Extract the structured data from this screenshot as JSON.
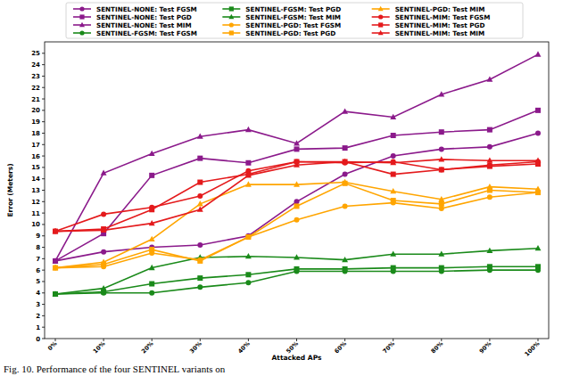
{
  "chart_data": {
    "type": "line",
    "title": "Fig. 10. Performance of the four SENTINEL variants on",
    "x_label": "Attacked APs",
    "y_label": "Error (Meters)",
    "categories": [
      "0%",
      "10%",
      "20%",
      "30%",
      "40%",
      "50%",
      "60%",
      "70%",
      "80%",
      "90%",
      "100%"
    ],
    "ylim": [
      0,
      26
    ],
    "yticks": [
      0,
      1,
      2,
      3,
      4,
      5,
      6,
      7,
      8,
      9,
      10,
      11,
      12,
      13,
      14,
      15,
      16,
      17,
      18,
      19,
      20,
      21,
      22,
      23,
      24,
      25
    ],
    "grid": false,
    "legend": "top",
    "series": [
      {
        "name": "SENTINEL-NONE: Test FGSM",
        "color": "#8b1a8b",
        "marker": "circle",
        "values": [
          6.8,
          7.6,
          8.0,
          8.2,
          9.0,
          12.0,
          14.4,
          16.0,
          16.6,
          16.8,
          18.0
        ]
      },
      {
        "name": "SENTINEL-NONE: Test PGD",
        "color": "#8b1a8b",
        "marker": "square",
        "values": [
          6.8,
          9.2,
          14.3,
          15.8,
          15.4,
          16.6,
          16.7,
          17.8,
          18.1,
          18.3,
          20.0
        ]
      },
      {
        "name": "SENTINEL-NONE: Test MIM",
        "color": "#8b1a8b",
        "marker": "triangle",
        "values": [
          6.8,
          14.5,
          16.2,
          17.7,
          18.3,
          17.1,
          19.9,
          19.4,
          21.4,
          22.7,
          24.9
        ]
      },
      {
        "name": "SENTINEL-FGSM: Test FGSM",
        "color": "#1a8a1a",
        "marker": "circle",
        "values": [
          3.9,
          4.0,
          4.0,
          4.5,
          4.9,
          5.9,
          5.9,
          5.9,
          5.9,
          6.0,
          6.0
        ]
      },
      {
        "name": "SENTINEL-FGSM: Test PGD",
        "color": "#1a8a1a",
        "marker": "square",
        "values": [
          3.9,
          4.1,
          4.8,
          5.3,
          5.6,
          6.1,
          6.1,
          6.2,
          6.2,
          6.3,
          6.3
        ]
      },
      {
        "name": "SENTINEL-FGSM: Test MIM",
        "color": "#1a8a1a",
        "marker": "triangle",
        "values": [
          3.9,
          4.4,
          6.2,
          7.1,
          7.2,
          7.1,
          6.9,
          7.4,
          7.4,
          7.7,
          7.9
        ]
      },
      {
        "name": "SENTINEL-PGD: Test FGSM",
        "color": "#ffa500",
        "marker": "circle",
        "values": [
          6.2,
          6.3,
          7.5,
          6.9,
          8.9,
          10.4,
          11.6,
          11.9,
          11.4,
          12.4,
          12.8
        ]
      },
      {
        "name": "SENTINEL-PGD: Test PGD",
        "color": "#ffa500",
        "marker": "square",
        "values": [
          6.2,
          6.5,
          7.8,
          6.8,
          8.9,
          11.6,
          13.6,
          12.1,
          11.8,
          13.0,
          12.8
        ]
      },
      {
        "name": "SENTINEL-PGD: Test MIM",
        "color": "#ffa500",
        "marker": "triangle",
        "values": [
          6.2,
          6.7,
          8.7,
          11.8,
          13.5,
          13.5,
          13.7,
          12.9,
          12.2,
          13.3,
          13.1
        ]
      },
      {
        "name": "SENTINEL-MIM: Test FGSM",
        "color": "#e41a1c",
        "marker": "circle",
        "values": [
          9.4,
          10.9,
          11.5,
          12.5,
          14.7,
          15.5,
          15.4,
          15.5,
          14.8,
          15.2,
          15.5
        ]
      },
      {
        "name": "SENTINEL-MIM: Test PGD",
        "color": "#e41a1c",
        "marker": "square",
        "values": [
          9.4,
          9.6,
          11.3,
          13.7,
          14.4,
          15.5,
          15.5,
          14.4,
          14.8,
          15.1,
          15.3
        ]
      },
      {
        "name": "SENTINEL-MIM: Test MIM",
        "color": "#e41a1c",
        "marker": "triangle",
        "values": [
          9.4,
          9.5,
          10.1,
          11.3,
          14.3,
          15.2,
          15.5,
          15.4,
          15.7,
          15.6,
          15.6
        ]
      }
    ]
  }
}
